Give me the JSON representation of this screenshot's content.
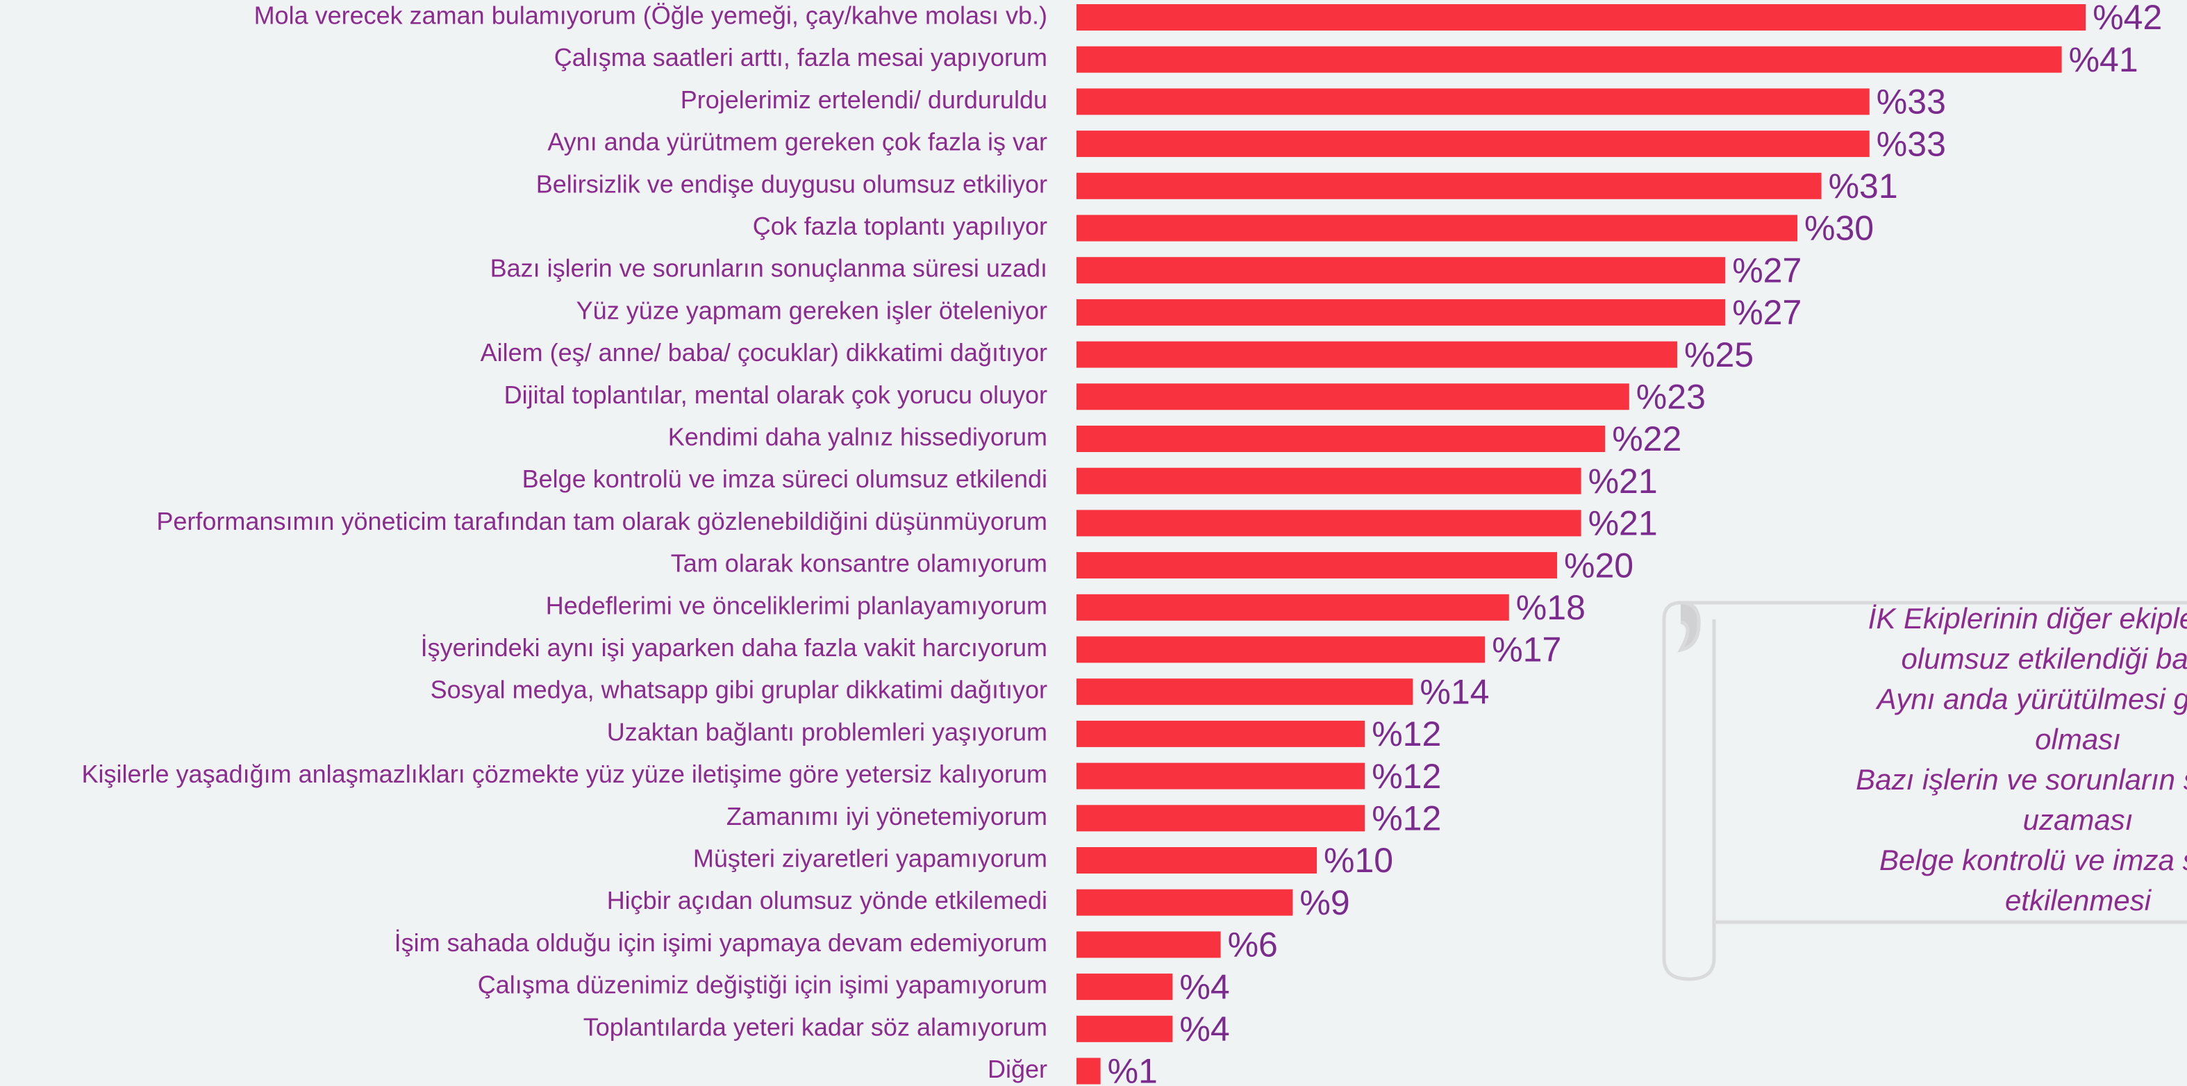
{
  "chart_data": {
    "type": "bar",
    "orientation": "horizontal",
    "categories": [
      "Mola verecek zaman bulamıyorum (Öğle yemeği, çay/kahve molası vb.)",
      "Çalışma saatleri arttı, fazla mesai yapıyorum",
      "Projelerimiz ertelendi/ durduruldu",
      "Aynı anda yürütmem gereken çok fazla iş var",
      "Belirsizlik ve endişe duygusu olumsuz etkiliyor",
      "Çok fazla toplantı yapılıyor",
      "Bazı işlerin ve sorunların sonuçlanma süresi uzadı",
      "Yüz yüze yapmam gereken işler öteleniyor",
      "Ailem (eş/ anne/ baba/ çocuklar) dikkatimi dağıtıyor",
      "Dijital toplantılar, mental olarak çok yorucu oluyor",
      "Kendimi daha yalnız hissediyorum",
      "Belge kontrolü ve imza süreci olumsuz etkilendi",
      "Performansımın yöneticim tarafından tam olarak gözlenebildiğini düşünmüyorum",
      "Tam olarak konsantre olamıyorum",
      "Hedeflerimi ve önceliklerimi planlayamıyorum",
      "İşyerindeki aynı işi yaparken daha fazla vakit harcıyorum",
      "Sosyal medya, whatsapp gibi gruplar dikkatimi dağıtıyor",
      "Uzaktan bağlantı problemleri yaşıyorum",
      "Kişilerle yaşadığım anlaşmazlıkları çözmekte yüz yüze iletişime göre yetersiz kalıyorum",
      "Zamanımı iyi yönetemiyorum",
      "Müşteri ziyaretleri yapamıyorum",
      "Hiçbir açıdan olumsuz yönde etkilemedi",
      "İşim sahada olduğu için işimi yapmaya devam edemiyorum",
      "Çalışma düzenimiz değiştiği için işimi yapamıyorum",
      "Toplantılarda yeteri kadar söz alamıyorum",
      "Diğer"
    ],
    "values": [
      42,
      41,
      33,
      33,
      31,
      30,
      27,
      27,
      25,
      23,
      22,
      21,
      21,
      20,
      18,
      17,
      14,
      12,
      12,
      12,
      10,
      9,
      6,
      4,
      4,
      1
    ],
    "value_labels": [
      "%42",
      "%41",
      "%33",
      "%33",
      "%31",
      "%30",
      "%27",
      "%27",
      "%25",
      "%23",
      "%22",
      "%21",
      "%21",
      "%20",
      "%18",
      "%17",
      "%14",
      "%12",
      "%12",
      "%12",
      "%10",
      "%9",
      "%6",
      "%4",
      "%4",
      "%1"
    ],
    "color": "#f9323f",
    "annotation": [
      "İK Ekiplerinin diğer ekiplere göre",
      "olumsuz etkilendiği başlıkla",
      "Aynı anda yürütülmesi gereken",
      "olması",
      "Bazı işlerin ve sorunların sonuçlan",
      "uzaması",
      "Belge kontrolü ve imza sürecin",
      "etkilenmesi"
    ]
  }
}
